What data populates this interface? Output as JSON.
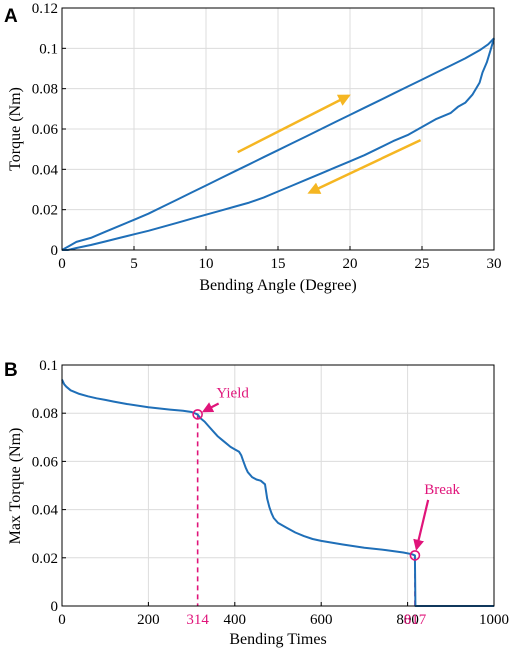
{
  "colors": {
    "curve": "#1f6fb8",
    "arrow": "#f5b622",
    "annotation": "#e0147a",
    "grid": "#dcdcdc"
  },
  "chart_data": [
    {
      "panel": "A",
      "type": "line",
      "xlabel": "Bending Angle (Degree)",
      "ylabel": "Torque (Nm)",
      "xlim": [
        0,
        30
      ],
      "ylim": [
        0,
        0.12
      ],
      "xticks": [
        0,
        5,
        10,
        15,
        20,
        25,
        30
      ],
      "xtick_labels": [
        "0",
        "5",
        "10",
        "15",
        "20",
        "25",
        "30"
      ],
      "yticks": [
        0,
        0.02,
        0.04,
        0.06,
        0.08,
        0.1,
        0.12
      ],
      "ytick_labels": [
        "0",
        "0.02",
        "0.04",
        "0.06",
        "0.08",
        "0.1",
        "0.12"
      ],
      "grid": true,
      "series": [
        {
          "x": [
            0,
            0.5,
            1,
            2,
            3,
            4,
            5,
            6,
            7,
            8,
            9,
            10,
            11,
            12,
            13,
            14,
            15,
            16,
            17,
            18,
            19,
            20,
            21,
            22,
            23,
            24,
            25,
            26,
            27,
            28,
            29,
            29.6,
            30
          ],
          "y": [
            0,
            0.002,
            0.004,
            0.006,
            0.009,
            0.012,
            0.015,
            0.018,
            0.0215,
            0.025,
            0.0285,
            0.032,
            0.0355,
            0.039,
            0.0425,
            0.046,
            0.0495,
            0.053,
            0.0565,
            0.06,
            0.0635,
            0.067,
            0.0705,
            0.074,
            0.0775,
            0.081,
            0.0845,
            0.088,
            0.0915,
            0.095,
            0.099,
            0.102,
            0.105
          ]
        },
        {
          "x": [
            30,
            29.8,
            29.5,
            29.2,
            29,
            28.5,
            28,
            27.5,
            27,
            26,
            25,
            24,
            23,
            22,
            21,
            20,
            19,
            18,
            17,
            16,
            15,
            14,
            13,
            12,
            11,
            10,
            9,
            8,
            7,
            6,
            5,
            4,
            3,
            2,
            1,
            0.6,
            0.4,
            0
          ],
          "y": [
            0.105,
            0.1,
            0.093,
            0.088,
            0.083,
            0.077,
            0.073,
            0.071,
            0.068,
            0.065,
            0.061,
            0.057,
            0.054,
            0.0505,
            0.047,
            0.044,
            0.041,
            0.038,
            0.035,
            0.032,
            0.029,
            0.026,
            0.0235,
            0.0215,
            0.0195,
            0.0175,
            0.0155,
            0.0135,
            0.0115,
            0.0095,
            0.0078,
            0.006,
            0.0042,
            0.0025,
            0.001,
            0.0003,
            0,
            0
          ]
        }
      ],
      "arrows": [
        {
          "from": [
            12.2,
            0.0485
          ],
          "to": [
            19.9,
            0.0765
          ]
        },
        {
          "from": [
            24.9,
            0.0545
          ],
          "to": [
            17.2,
            0.0285
          ]
        }
      ]
    },
    {
      "panel": "B",
      "type": "line",
      "xlabel": "Bending Times",
      "ylabel": "Max Torque (Nm)",
      "xlim": [
        0,
        1000
      ],
      "ylim": [
        0,
        0.1
      ],
      "xticks": [
        0,
        200,
        400,
        600,
        800,
        1000
      ],
      "xtick_labels": [
        "0",
        "200",
        "400",
        "600",
        "800",
        "1000"
      ],
      "yticks": [
        0,
        0.02,
        0.04,
        0.06,
        0.08,
        0.1
      ],
      "ytick_labels": [
        "0",
        "0.02",
        "0.04",
        "0.06",
        "0.08",
        "0.1"
      ],
      "highlight_ticks": [
        {
          "x": 314,
          "label": "314"
        },
        {
          "x": 817,
          "label": "817"
        }
      ],
      "grid": true,
      "series": [
        {
          "x": [
            0,
            5,
            10,
            20,
            40,
            60,
            80,
            100,
            120,
            150,
            200,
            250,
            280,
            300,
            314,
            320,
            330,
            340,
            350,
            360,
            370,
            380,
            390,
            400,
            410,
            415,
            420,
            425,
            430,
            440,
            450,
            460,
            470,
            475,
            480,
            485,
            490,
            500,
            520,
            540,
            560,
            580,
            600,
            650,
            700,
            750,
            790,
            810,
            817,
            818,
            830,
            900,
            1000
          ],
          "y": [
            0.094,
            0.092,
            0.091,
            0.0895,
            0.088,
            0.087,
            0.0862,
            0.0855,
            0.0848,
            0.0838,
            0.0825,
            0.0815,
            0.081,
            0.0805,
            0.0795,
            0.078,
            0.0765,
            0.0745,
            0.0725,
            0.0705,
            0.069,
            0.0675,
            0.066,
            0.065,
            0.064,
            0.0625,
            0.06,
            0.0575,
            0.0555,
            0.0535,
            0.0525,
            0.052,
            0.0505,
            0.0445,
            0.041,
            0.0385,
            0.0365,
            0.0345,
            0.0325,
            0.0305,
            0.029,
            0.0278,
            0.027,
            0.0255,
            0.0242,
            0.0232,
            0.0222,
            0.0215,
            0.021,
            0,
            0,
            0,
            0
          ]
        }
      ],
      "annotations": [
        {
          "label": "Yield",
          "point": [
            314,
            0.0795
          ],
          "text_at": [
            395,
            0.0865
          ]
        },
        {
          "label": "Break",
          "point": [
            817,
            0.021
          ],
          "text_at": [
            880,
            0.0465
          ]
        }
      ]
    }
  ]
}
